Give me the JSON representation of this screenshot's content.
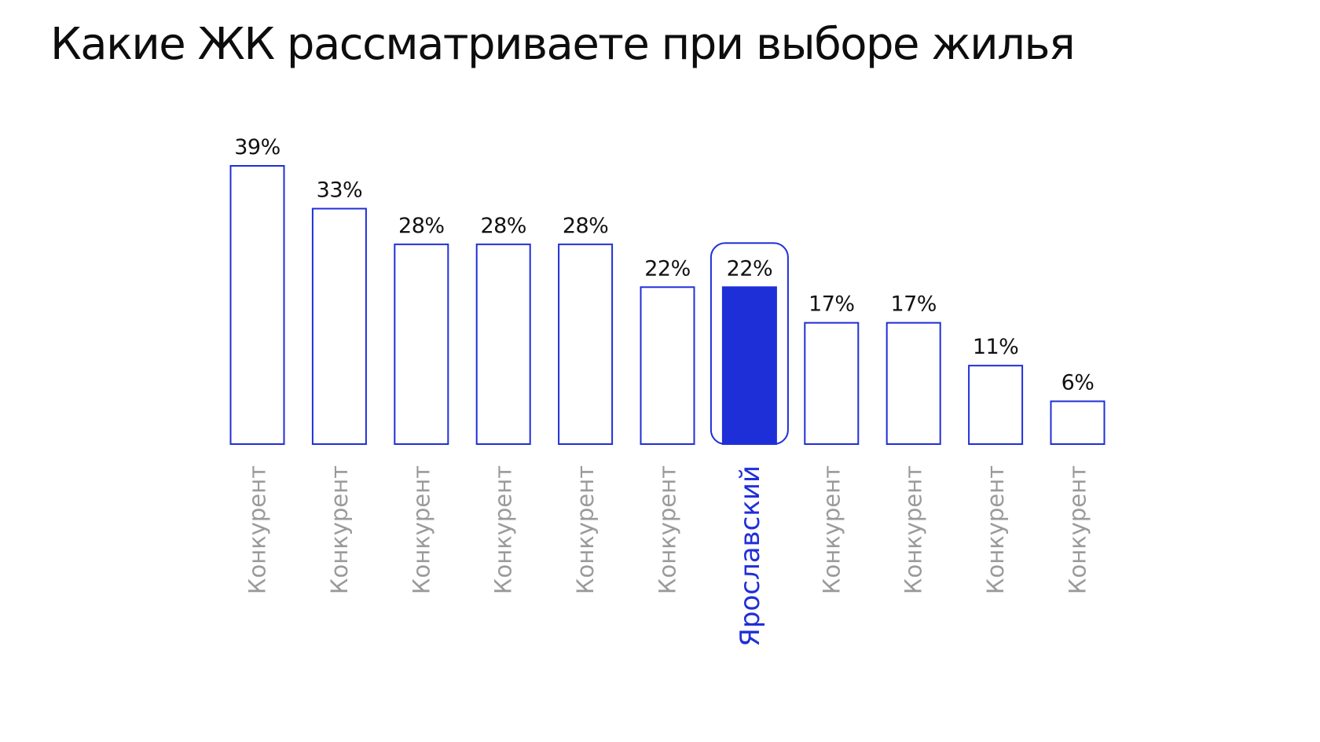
{
  "title": "Какие ЖК рассматриваете при выборе жилья",
  "colors": {
    "accent": "#1f2fd8",
    "bar_outline": "#1f2fd8",
    "bar_fill": "#ffffff",
    "value_text": "#111111",
    "category_text": "#9a9a9a"
  },
  "chart_data": {
    "type": "bar",
    "title": "Какие ЖК рассматриваете при выборе жилья",
    "xlabel": "",
    "ylabel": "",
    "ylim": [
      0,
      39
    ],
    "grid": false,
    "categories": [
      "Конкурент",
      "Конкурент",
      "Конкурент",
      "Конкурент",
      "Конкурент",
      "Конкурент",
      "Ярославский",
      "Конкурент",
      "Конкурент",
      "Конкурент",
      "Конкурент"
    ],
    "values": [
      39,
      33,
      28,
      28,
      28,
      22,
      22,
      17,
      17,
      11,
      6
    ],
    "value_labels": [
      "39%",
      "33%",
      "28%",
      "28%",
      "28%",
      "22%",
      "22%",
      "17%",
      "17%",
      "11%",
      "6%"
    ],
    "highlight_index": 6
  }
}
